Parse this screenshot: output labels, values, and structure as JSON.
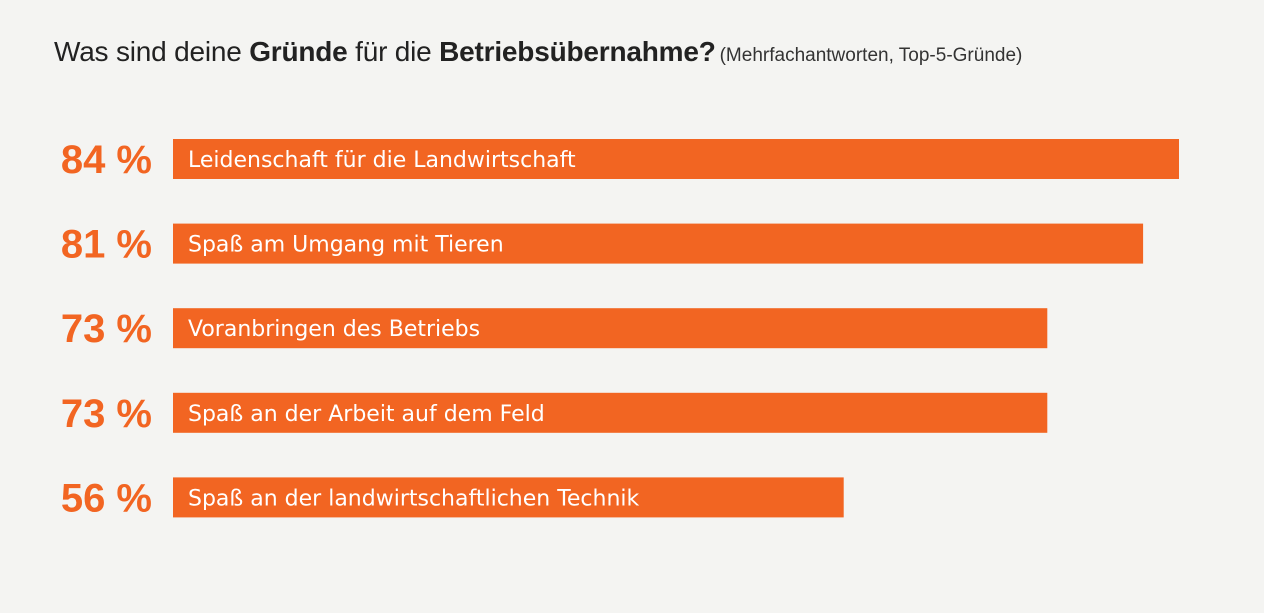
{
  "title": {
    "part1": "Was sind deine ",
    "bold1": "Gründe",
    "part2": " für die ",
    "bold2": "Betriebsübernahme?",
    "note": "(Mehrfachantworten, Top-5-Gründe)"
  },
  "colors": {
    "bar": "#f26522",
    "percent": "#f26522",
    "label": "#ffffff"
  },
  "chart_data": {
    "type": "bar",
    "orientation": "horizontal",
    "categories": [
      "Leidenschaft für die Landwirtschaft",
      "Spaß am Umgang mit Tieren",
      "Voranbringen des Betriebs",
      "Spaß an der Arbeit auf dem Feld",
      "Spaß an der landwirtschaftlichen Technik"
    ],
    "values": [
      84,
      81,
      73,
      73,
      56
    ],
    "value_labels": [
      "84 %",
      "81 %",
      "73 %",
      "73 %",
      "56 %"
    ],
    "unit": "%",
    "xlim": [
      0,
      84
    ],
    "grid": false,
    "legend": "none"
  }
}
